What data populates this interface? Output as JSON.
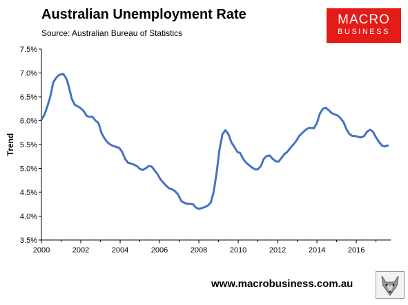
{
  "header": {
    "title": "Australian Unemployment Rate",
    "source": "Source: Australian Bureau of Statistics"
  },
  "brand": {
    "logo_line1": "MACRO",
    "logo_line2": "BUSINESS",
    "logo_color": "#e41b17",
    "website": "www.macrobusiness.com.au",
    "mascot_icon": "wolf-icon"
  },
  "chart_data": {
    "type": "line",
    "title": "Australian Unemployment Rate",
    "ylabel": "Trend",
    "xlabel": "",
    "xlim": [
      2000,
      2017.75
    ],
    "ylim": [
      3.5,
      7.5
    ],
    "x_ticks": [
      2000,
      2002,
      2004,
      2006,
      2008,
      2010,
      2012,
      2014,
      2016
    ],
    "x_tick_labels": [
      "2000",
      "2002",
      "2004",
      "2006",
      "2008",
      "2010",
      "2012",
      "2014",
      "2016"
    ],
    "y_ticks": [
      3.5,
      4.0,
      4.5,
      5.0,
      5.5,
      6.0,
      6.5,
      7.0,
      7.5
    ],
    "y_tick_labels": [
      "3.5%",
      "4.0%",
      "4.5%",
      "5.0%",
      "5.5%",
      "6.0%",
      "6.5%",
      "7.0%",
      "7.5%"
    ],
    "grid": false,
    "legend": false,
    "series": [
      {
        "color": "#4472c4",
        "x": [
          2000.0,
          2000.15,
          2000.3,
          2000.45,
          2000.6,
          2000.75,
          2000.9,
          2001.0,
          2001.1,
          2001.2,
          2001.3,
          2001.4,
          2001.55,
          2001.7,
          2001.85,
          2002.0,
          2002.15,
          2002.3,
          2002.45,
          2002.6,
          2002.75,
          2002.9,
          2003.05,
          2003.2,
          2003.35,
          2003.5,
          2003.65,
          2003.8,
          2003.95,
          2004.1,
          2004.25,
          2004.4,
          2004.55,
          2004.7,
          2004.85,
          2005.0,
          2005.15,
          2005.3,
          2005.45,
          2005.6,
          2005.75,
          2005.9,
          2006.05,
          2006.2,
          2006.35,
          2006.5,
          2006.65,
          2006.8,
          2006.95,
          2007.1,
          2007.25,
          2007.4,
          2007.55,
          2007.7,
          2007.85,
          2008.0,
          2008.15,
          2008.3,
          2008.45,
          2008.6,
          2008.75,
          2008.9,
          2009.05,
          2009.2,
          2009.35,
          2009.5,
          2009.65,
          2009.8,
          2009.95,
          2010.1,
          2010.25,
          2010.4,
          2010.55,
          2010.7,
          2010.85,
          2011.0,
          2011.15,
          2011.3,
          2011.45,
          2011.6,
          2011.75,
          2011.9,
          2012.05,
          2012.2,
          2012.35,
          2012.5,
          2012.65,
          2012.8,
          2012.95,
          2013.1,
          2013.25,
          2013.4,
          2013.55,
          2013.7,
          2013.85,
          2014.0,
          2014.15,
          2014.3,
          2014.45,
          2014.6,
          2014.75,
          2014.9,
          2015.05,
          2015.2,
          2015.35,
          2015.5,
          2015.65,
          2015.8,
          2015.95,
          2016.1,
          2016.25,
          2016.4,
          2016.55,
          2016.7,
          2016.85,
          2017.0,
          2017.15,
          2017.3,
          2017.45,
          2017.6
        ],
        "y": [
          6.02,
          6.12,
          6.3,
          6.5,
          6.8,
          6.9,
          6.96,
          6.97,
          6.98,
          6.93,
          6.85,
          6.7,
          6.45,
          6.33,
          6.3,
          6.26,
          6.2,
          6.1,
          6.08,
          6.08,
          6.0,
          5.95,
          5.75,
          5.63,
          5.55,
          5.5,
          5.47,
          5.45,
          5.43,
          5.35,
          5.2,
          5.12,
          5.1,
          5.08,
          5.05,
          4.99,
          4.97,
          5.0,
          5.05,
          5.04,
          4.96,
          4.88,
          4.77,
          4.7,
          4.63,
          4.58,
          4.56,
          4.52,
          4.45,
          4.32,
          4.28,
          4.26,
          4.26,
          4.25,
          4.18,
          4.15,
          4.17,
          4.19,
          4.22,
          4.28,
          4.5,
          4.9,
          5.4,
          5.72,
          5.8,
          5.72,
          5.55,
          5.45,
          5.35,
          5.32,
          5.2,
          5.12,
          5.07,
          5.02,
          4.98,
          4.98,
          5.05,
          5.2,
          5.26,
          5.27,
          5.2,
          5.15,
          5.14,
          5.22,
          5.3,
          5.35,
          5.43,
          5.5,
          5.58,
          5.68,
          5.74,
          5.8,
          5.84,
          5.85,
          5.84,
          5.95,
          6.15,
          6.25,
          6.27,
          6.22,
          6.16,
          6.13,
          6.11,
          6.05,
          5.97,
          5.82,
          5.72,
          5.68,
          5.68,
          5.66,
          5.65,
          5.68,
          5.77,
          5.81,
          5.77,
          5.65,
          5.56,
          5.48,
          5.46,
          5.48
        ]
      }
    ]
  }
}
